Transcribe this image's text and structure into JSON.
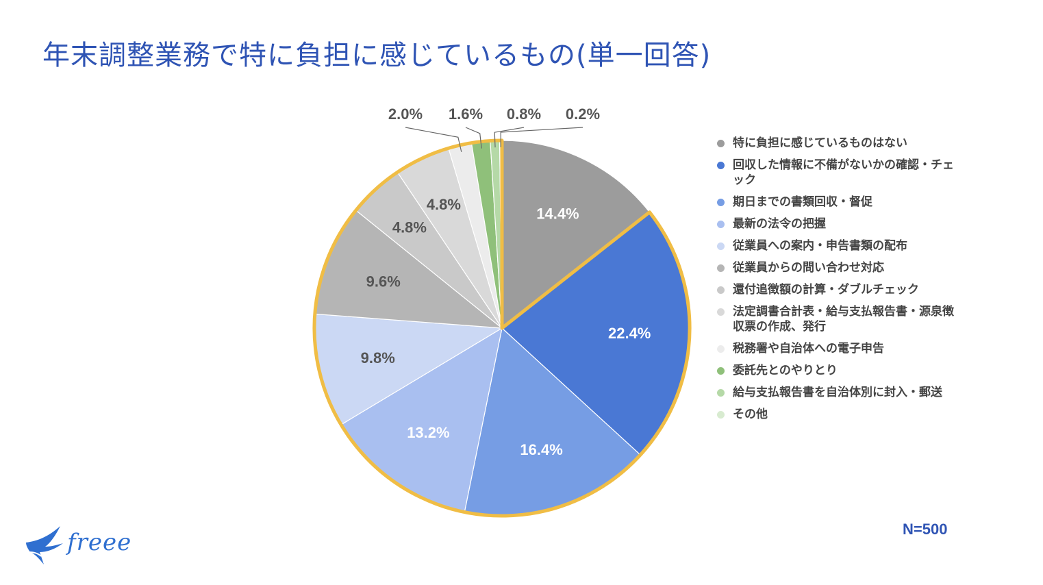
{
  "title": "年末調整業務で特に負担に感じているもの(単一回答)",
  "sample_size": "N=500",
  "logo_text": "freee",
  "chart_data": {
    "type": "pie",
    "title": "年末調整業務で特に負担に感じているもの(単一回答)",
    "start_angle_deg": 0,
    "direction": "clockwise",
    "legend_position": "right",
    "highlight_border_color": "#f0bd45",
    "highlighted_slices": [
      1,
      2,
      3,
      4,
      5,
      6,
      7,
      8,
      9,
      10,
      11
    ],
    "slices": [
      {
        "label": "特に負担に感じているものはない",
        "value": 14.4,
        "value_label": "14.4%",
        "color": "#9c9c9c",
        "label_color": "#ffffff"
      },
      {
        "label": "回収した情報に不備がないかの確認・チェック",
        "value": 22.4,
        "value_label": "22.4%",
        "color": "#4a78d4",
        "label_color": "#ffffff"
      },
      {
        "label": "期日までの書類回収・督促",
        "value": 16.4,
        "value_label": "16.4%",
        "color": "#769de4",
        "label_color": "#ffffff"
      },
      {
        "label": "最新の法令の把握",
        "value": 13.2,
        "value_label": "13.2%",
        "color": "#a9bff0",
        "label_color": "#ffffff"
      },
      {
        "label": "従業員への案内・申告書類の配布",
        "value": 9.8,
        "value_label": "9.8%",
        "color": "#cbd8f4",
        "label_color": "#555555"
      },
      {
        "label": "従業員からの問い合わせ対応",
        "value": 9.6,
        "value_label": "9.6%",
        "color": "#b5b5b5",
        "label_color": "#555555"
      },
      {
        "label": "還付追徴額の計算・ダブルチェック",
        "value": 4.8,
        "value_label": "4.8%",
        "color": "#c9c9c9",
        "label_color": "#555555"
      },
      {
        "label": "法定調書合計表・給与支払報告書・源泉徴収票の作成、発行",
        "value": 4.8,
        "value_label": "4.8%",
        "color": "#d9d9d9",
        "label_color": "#555555"
      },
      {
        "label": "税務署や自治体への電子申告",
        "value": 2.0,
        "value_label": "2.0%",
        "color": "#ececec",
        "label_color": "#555555"
      },
      {
        "label": "委託先とのやりとり",
        "value": 1.6,
        "value_label": "1.6%",
        "color": "#8fc07a",
        "label_color": "#555555"
      },
      {
        "label": "給与支払報告書を自治体別に封入・郵送",
        "value": 0.8,
        "value_label": "0.8%",
        "color": "#b5d9a7",
        "label_color": "#555555"
      },
      {
        "label": "その他",
        "value": 0.2,
        "value_label": "0.2%",
        "color": "#d8ebd0",
        "label_color": "#555555"
      }
    ]
  }
}
